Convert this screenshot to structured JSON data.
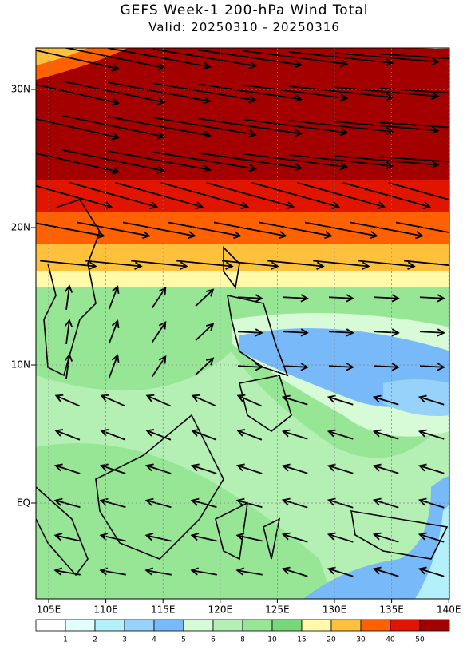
{
  "header": {
    "title": "GEFS Week-1 200-hPa Wind Total",
    "subtitle": "Valid: 20250310 - 20250316"
  },
  "lat_labels": [
    "30N",
    "20N",
    "10N",
    "EQ"
  ],
  "lon_labels": [
    "105E",
    "110E",
    "115E",
    "120E",
    "125E",
    "130E",
    "135E",
    "140E"
  ],
  "colorbar": {
    "labels": [
      "1",
      "2",
      "3",
      "4",
      "5",
      "6",
      "8",
      "10",
      "15",
      "20",
      "30",
      "40",
      "50"
    ],
    "colors": [
      "#ffffff",
      "#e1ffff",
      "#b4f0fa",
      "#96d2fa",
      "#78b9fa",
      "#d7fad7",
      "#b4f0b4",
      "#96e696",
      "#78d778",
      "#fffaaa",
      "#ffc03c",
      "#ff6000",
      "#e11400",
      "#a50000"
    ]
  }
}
